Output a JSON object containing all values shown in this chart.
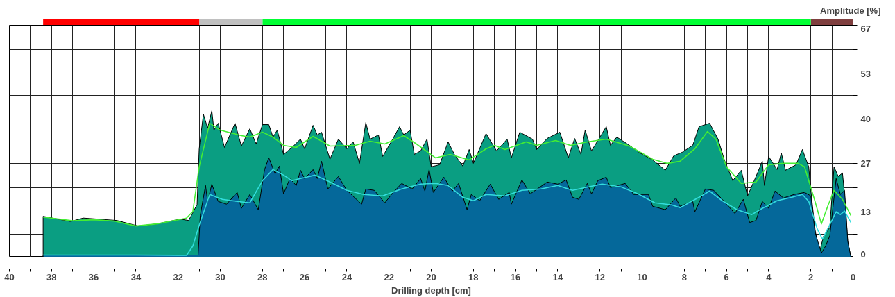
{
  "chart_data": [
    {
      "type": "bar",
      "orientation": "horizontal",
      "stacked": true,
      "categories": [
        null
      ],
      "xlim": [
        40,
        0
      ],
      "series": [
        {
          "color": "#7f3f3f",
          "values": [
            2
          ]
        },
        {
          "color": "#00ff33",
          "values": [
            26
          ]
        },
        {
          "color": "#c0c0c0",
          "values": [
            3
          ]
        },
        {
          "color": "#ff0000",
          "values": [
            7.4
          ]
        }
      ]
    },
    {
      "type": "area",
      "ylabel": "Amplitude [%]",
      "xlabel": "Drilling depth [cm]",
      "xlim": [
        40,
        0
      ],
      "ylim": [
        0,
        67
      ],
      "xticks": [
        40,
        {
          "value": 39,
          "label": null
        },
        38,
        {
          "value": 37,
          "label": null
        },
        36,
        {
          "value": 35,
          "label": null
        },
        34,
        {
          "value": 33,
          "label": null
        },
        32,
        {
          "value": 31,
          "label": null
        },
        30,
        {
          "value": 29,
          "label": null
        },
        28,
        {
          "value": 27,
          "label": null
        },
        26,
        {
          "value": 25,
          "label": null
        },
        24,
        {
          "value": 23,
          "label": null
        },
        22,
        {
          "value": 21,
          "label": null
        },
        20,
        {
          "value": 19,
          "label": null
        },
        18,
        {
          "value": 17,
          "label": null
        },
        16,
        {
          "value": 15,
          "label": null
        },
        14,
        {
          "value": 13,
          "label": null
        },
        12,
        {
          "value": 11,
          "label": null
        },
        10,
        {
          "value": 9,
          "label": null
        },
        8,
        {
          "value": 7,
          "label": null
        },
        6,
        {
          "value": 5,
          "label": null
        },
        4,
        {
          "value": 3,
          "label": null
        },
        2,
        {
          "value": 1,
          "label": null
        },
        0
      ],
      "yticks": [
        0,
        {
          "value": 6.7,
          "label": null
        },
        13,
        {
          "value": 20,
          "label": null
        },
        27,
        {
          "value": 33.3,
          "label": null
        },
        40,
        {
          "value": 46.7,
          "label": null
        },
        53,
        {
          "value": 60,
          "label": null
        },
        67
      ],
      "grid": true,
      "series": [
        {
          "color": "#0a9e82",
          "x": [
            38.4,
            37.1,
            36.5,
            34.9,
            33.9,
            33.0,
            31.9,
            31.5,
            31.1,
            31.0,
            30.8,
            30.6,
            30.4,
            30.3,
            30.1,
            29.8,
            29.3,
            29.0,
            28.6,
            28.3,
            28.0,
            27.7,
            27.5,
            27.3,
            27.0,
            26.6,
            26.2,
            26.0,
            25.6,
            25.4,
            25.2,
            24.8,
            24.4,
            24.0,
            23.7,
            23.4,
            23.1,
            22.9,
            22.5,
            22.3,
            21.9,
            21.5,
            21.3,
            21.0,
            20.8,
            20.5,
            20.2,
            20.0,
            19.6,
            19.2,
            18.9,
            18.5,
            18.2,
            18.0,
            17.4,
            16.9,
            16.4,
            16.2,
            15.8,
            15.2,
            15.0,
            14.5,
            13.9,
            13.5,
            13.2,
            12.9,
            12.7,
            12.4,
            11.7,
            11.5,
            11.2,
            10.6,
            10.1,
            9.5,
            8.9,
            8.5,
            8.1,
            7.6,
            7.3,
            6.8,
            6.4,
            6.1,
            5.7,
            5.3,
            5.0,
            4.6,
            4.3,
            4.2,
            4.0,
            3.6,
            3.4,
            3.2,
            2.7,
            2.4,
            2.1,
            2.0,
            1.8,
            1.6,
            1.4,
            1.1,
            0.9,
            0.7,
            0.5,
            0.4,
            0.25,
            0.1
          ],
          "values": [
            11.8,
            10.3,
            11.3,
            10.6,
            9.0,
            9.6,
            11.0,
            10.6,
            15.2,
            31.3,
            41.3,
            37.3,
            42.3,
            36.7,
            38.7,
            31.7,
            38.7,
            32.1,
            37.1,
            32.7,
            38.3,
            38.3,
            34.7,
            36.7,
            29.7,
            31.7,
            34.1,
            31.3,
            38.1,
            35.3,
            36.1,
            28.3,
            34.1,
            31.3,
            33.3,
            27.1,
            38.9,
            34.1,
            35.3,
            29.1,
            33.3,
            37.7,
            35.3,
            36.7,
            29.7,
            30.7,
            34.1,
            26.1,
            26.7,
            33.3,
            29.7,
            26.3,
            31.1,
            27.1,
            35.7,
            30.7,
            34.1,
            28.7,
            36.1,
            34.1,
            31.1,
            34.3,
            36.1,
            28.7,
            34.3,
            29.7,
            36.7,
            30.7,
            37.7,
            32.3,
            34.7,
            32.3,
            30.1,
            28.1,
            25.1,
            29.3,
            30.3,
            32.3,
            37.7,
            38.7,
            34.1,
            28.1,
            22.1,
            25.1,
            17.7,
            23.3,
            27.7,
            20.7,
            29.1,
            25.3,
            30.1,
            25.1,
            26.7,
            31.1,
            26.1,
            19.3,
            8.0,
            1.2,
            6.0,
            8.6,
            26.1,
            23.3,
            24.3,
            18.1,
            4.6,
            0
          ]
        },
        {
          "color": "#05689a",
          "x": [
            38.4,
            34.0,
            31.05,
            30.95,
            30.7,
            30.6,
            30.4,
            30.1,
            29.7,
            29.2,
            29.0,
            28.6,
            28.2,
            27.9,
            27.7,
            27.4,
            27.2,
            27.0,
            26.7,
            26.4,
            26.2,
            26.0,
            25.6,
            25.4,
            25.2,
            24.9,
            24.4,
            24.0,
            23.3,
            23.1,
            22.7,
            22.2,
            21.8,
            21.4,
            20.9,
            20.5,
            20.3,
            20.1,
            19.9,
            19.4,
            19.0,
            18.7,
            18.3,
            18.1,
            17.7,
            17.2,
            16.8,
            16.3,
            16.2,
            15.7,
            15.3,
            14.5,
            14.0,
            13.6,
            13.3,
            13.0,
            12.6,
            12.4,
            12.1,
            11.7,
            11.5,
            10.8,
            10.4,
            9.7,
            9.5,
            8.9,
            8.4,
            8.2,
            7.6,
            7.5,
            7.0,
            6.6,
            6.2,
            5.6,
            5.2,
            4.9,
            4.6,
            4.3,
            4.0,
            3.7,
            3.3,
            2.8,
            2.3,
            2.0,
            1.8,
            1.5,
            1.3,
            1.1,
            0.8,
            0.6,
            0.4,
            0.25,
            0.1
          ],
          "values": [
            0.6,
            0.6,
            0.6,
            12.0,
            20.7,
            16.1,
            21.1,
            16.1,
            15.3,
            18.7,
            14.1,
            18.1,
            13.7,
            25.3,
            28.7,
            24.1,
            26.3,
            18.3,
            22.7,
            20.7,
            25.1,
            22.7,
            25.3,
            22.7,
            27.7,
            19.7,
            23.3,
            19.3,
            15.3,
            19.7,
            19.3,
            15.7,
            18.7,
            21.3,
            19.7,
            22.7,
            19.1,
            25.3,
            18.7,
            23.1,
            19.1,
            21.3,
            13.7,
            18.1,
            16.3,
            21.1,
            16.7,
            18.7,
            15.3,
            22.3,
            18.3,
            21.7,
            21.1,
            22.3,
            17.3,
            16.7,
            21.3,
            18.3,
            22.1,
            23.1,
            20.1,
            21.3,
            18.1,
            18.1,
            14.7,
            13.7,
            17.1,
            14.7,
            16.1,
            13.1,
            19.7,
            19.3,
            16.7,
            12.6,
            16.7,
            10.0,
            10.6,
            16.1,
            14.1,
            19.1,
            17.1,
            18.1,
            18.7,
            17.7,
            7.2,
            1.2,
            3.2,
            6.2,
            22.7,
            18.1,
            19.3,
            4.6,
            0
          ]
        },
        {
          "type": "line",
          "color": "#44ee33",
          "x": [
            38.4,
            37.0,
            36.0,
            35.0,
            34.0,
            33.0,
            32.0,
            31.6,
            31.3,
            31.0,
            30.5,
            30.0,
            29.0,
            28.6,
            28.0,
            27.5,
            27.0,
            26.4,
            25.6,
            24.8,
            23.6,
            22.9,
            22.2,
            21.3,
            20.7,
            19.8,
            19.1,
            18.2,
            17.4,
            17.0,
            16.5,
            15.5,
            15.0,
            14.1,
            13.4,
            12.6,
            11.7,
            10.6,
            9.5,
            8.8,
            8.2,
            7.5,
            6.9,
            6.5,
            6.0,
            5.3,
            4.6,
            4.0,
            3.3,
            2.6,
            2.3,
            1.8,
            1.5,
            1.2,
            0.9,
            0.5,
            0.1
          ],
          "values": [
            11.6,
            10.5,
            10.8,
            10.4,
            9.0,
            9.6,
            10.8,
            11.3,
            13.2,
            26.1,
            38.7,
            36.7,
            35.1,
            34.7,
            36.1,
            34.7,
            32.3,
            31.7,
            34.9,
            32.1,
            32.3,
            33.5,
            32.7,
            35.1,
            32.7,
            28.7,
            29.7,
            28.1,
            31.3,
            32.3,
            31.1,
            33.3,
            32.3,
            33.7,
            32.3,
            33.3,
            34.1,
            32.1,
            28.3,
            27.1,
            27.7,
            31.3,
            36.3,
            34.1,
            26.1,
            21.3,
            21.7,
            26.7,
            27.1,
            27.1,
            26.1,
            16.1,
            9.6,
            14.7,
            19.3,
            16.7,
            12.0
          ]
        },
        {
          "type": "line",
          "color": "#33dddd",
          "x": [
            38.4,
            34.0,
            31.6,
            31.3,
            31.0,
            30.5,
            29.9,
            29.2,
            28.6,
            28.0,
            27.5,
            27.0,
            26.6,
            26.2,
            25.5,
            24.8,
            24.0,
            23.2,
            22.3,
            21.4,
            20.5,
            19.8,
            19.2,
            18.5,
            18.0,
            17.4,
            16.5,
            15.7,
            14.8,
            14.0,
            13.3,
            12.7,
            11.9,
            11.0,
            10.2,
            9.4,
            8.6,
            8.2,
            7.3,
            6.8,
            6.2,
            5.5,
            4.8,
            4.3,
            3.6,
            2.9,
            2.4,
            2.1,
            1.7,
            1.45,
            1.05,
            0.8,
            0.6,
            0.4,
            0.1
          ],
          "values": [
            0.6,
            0.6,
            0.5,
            3.2,
            9.2,
            18.1,
            16.7,
            16.1,
            15.7,
            22.1,
            25.3,
            23.7,
            22.1,
            22.7,
            23.7,
            21.7,
            19.3,
            18.1,
            17.7,
            19.7,
            21.1,
            21.3,
            20.7,
            17.3,
            16.3,
            18.1,
            17.7,
            19.3,
            19.7,
            20.7,
            19.3,
            20.1,
            21.1,
            20.3,
            18.3,
            15.7,
            15.1,
            14.3,
            17.3,
            19.1,
            16.3,
            13.7,
            12.3,
            14.1,
            16.3,
            17.3,
            18.1,
            16.1,
            8.2,
            5.2,
            10.0,
            13.1,
            12.3,
            13.3,
            10.0
          ]
        }
      ]
    }
  ]
}
